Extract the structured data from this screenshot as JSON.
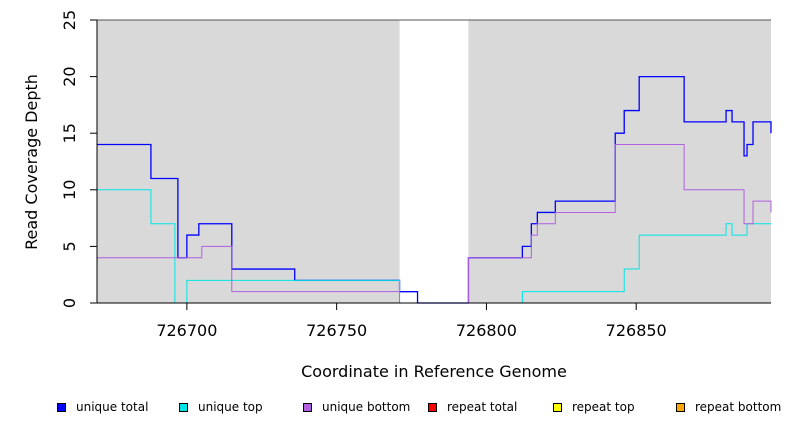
{
  "chart_data": {
    "type": "line",
    "title": "",
    "xlabel": "Coordinate in Reference Genome",
    "ylabel": "Read Coverage Depth",
    "xlim": [
      726670,
      726895
    ],
    "ylim": [
      0,
      25
    ],
    "x_ticks": [
      726700,
      726750,
      726800,
      726850
    ],
    "x_tick_labels": [
      "726700",
      "726750",
      "726800",
      "726850"
    ],
    "y_ticks": [
      0,
      5,
      10,
      15,
      20,
      25
    ],
    "y_tick_labels": [
      "0",
      "5",
      "10",
      "15",
      "20",
      "25"
    ],
    "grid": false,
    "background_color": "#d9d9d9",
    "shaded_regions": [
      {
        "x": [
          726670,
          726771
        ]
      },
      {
        "x": [
          726794,
          726895
        ]
      }
    ],
    "legend_position": "bottom",
    "series": [
      {
        "name": "unique total",
        "color": "#0000ff",
        "steps": [
          [
            726670,
            14
          ],
          [
            726688,
            11
          ],
          [
            726697,
            4
          ],
          [
            726700,
            6
          ],
          [
            726704,
            7
          ],
          [
            726715,
            3
          ],
          [
            726736,
            2
          ],
          [
            726771,
            1
          ],
          [
            726777,
            0
          ],
          [
            726794,
            4
          ],
          [
            726812,
            5
          ],
          [
            726815,
            7
          ],
          [
            726817,
            8
          ],
          [
            726823,
            9
          ],
          [
            726843,
            15
          ],
          [
            726846,
            17
          ],
          [
            726851,
            20
          ],
          [
            726866,
            16
          ],
          [
            726880,
            17
          ],
          [
            726882,
            16
          ],
          [
            726886,
            13
          ],
          [
            726887,
            14
          ],
          [
            726889,
            16
          ],
          [
            726895,
            15
          ]
        ]
      },
      {
        "name": "unique top",
        "color": "#00e5e5",
        "steps": [
          [
            726670,
            10
          ],
          [
            726688,
            7
          ],
          [
            726696,
            0
          ],
          [
            726700,
            2
          ],
          [
            726715,
            2
          ],
          [
            726771,
            0
          ],
          [
            726812,
            1
          ],
          [
            726846,
            3
          ],
          [
            726851,
            6
          ],
          [
            726880,
            7
          ],
          [
            726882,
            6
          ],
          [
            726887,
            7
          ],
          [
            726895,
            7
          ]
        ]
      },
      {
        "name": "unique bottom",
        "color": "#b05fe0",
        "steps": [
          [
            726670,
            4
          ],
          [
            726705,
            5
          ],
          [
            726715,
            1
          ],
          [
            726771,
            0
          ],
          [
            726794,
            4
          ],
          [
            726814,
            4
          ],
          [
            726815,
            6
          ],
          [
            726817,
            7
          ],
          [
            726823,
            8
          ],
          [
            726843,
            14
          ],
          [
            726866,
            10
          ],
          [
            726886,
            7
          ],
          [
            726889,
            9
          ],
          [
            726895,
            8
          ]
        ]
      },
      {
        "name": "repeat total",
        "color": "#ff0000",
        "steps": [
          [
            726670,
            0
          ],
          [
            726895,
            0
          ]
        ]
      },
      {
        "name": "repeat top",
        "color": "#ffff00",
        "steps": [
          [
            726670,
            0
          ],
          [
            726895,
            0
          ]
        ]
      },
      {
        "name": "repeat bottom",
        "color": "#ffa500",
        "steps": [
          [
            726670,
            0
          ],
          [
            726895,
            0
          ]
        ]
      }
    ]
  }
}
